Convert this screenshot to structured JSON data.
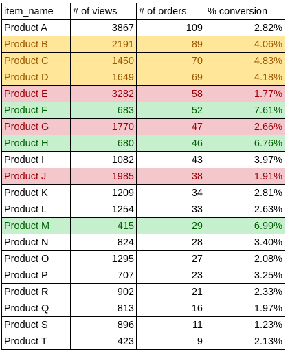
{
  "sheet": {
    "headers": [
      "item_name",
      "# of views",
      "# of orders",
      "% conversion"
    ],
    "highlight_styles": {
      "none": {
        "bg": "#ffffff",
        "fg": "#000000"
      },
      "yellow": {
        "bg": "#ffe699",
        "fg": "#9c5700"
      },
      "red": {
        "bg": "#f4c7cc",
        "fg": "#9c0006"
      },
      "green": {
        "bg": "#c6efce",
        "fg": "#006100"
      }
    },
    "rows": [
      {
        "item": "Product A",
        "views": "3867",
        "orders": "109",
        "conversion": "2.82%",
        "highlight": "none"
      },
      {
        "item": "Product B",
        "views": "2191",
        "orders": "89",
        "conversion": "4.06%",
        "highlight": "yellow"
      },
      {
        "item": "Product C",
        "views": "1450",
        "orders": "70",
        "conversion": "4.83%",
        "highlight": "yellow"
      },
      {
        "item": "Product D",
        "views": "1649",
        "orders": "69",
        "conversion": "4.18%",
        "highlight": "yellow"
      },
      {
        "item": "Product E",
        "views": "3282",
        "orders": "58",
        "conversion": "1.77%",
        "highlight": "red"
      },
      {
        "item": "Product F",
        "views": "683",
        "orders": "52",
        "conversion": "7.61%",
        "highlight": "green"
      },
      {
        "item": "Product G",
        "views": "1770",
        "orders": "47",
        "conversion": "2.66%",
        "highlight": "red"
      },
      {
        "item": "Product H",
        "views": "680",
        "orders": "46",
        "conversion": "6.76%",
        "highlight": "green"
      },
      {
        "item": "Product I",
        "views": "1082",
        "orders": "43",
        "conversion": "3.97%",
        "highlight": "none"
      },
      {
        "item": "Product J",
        "views": "1985",
        "orders": "38",
        "conversion": "1.91%",
        "highlight": "red"
      },
      {
        "item": "Product K",
        "views": "1209",
        "orders": "34",
        "conversion": "2.81%",
        "highlight": "none"
      },
      {
        "item": "Product L",
        "views": "1254",
        "orders": "33",
        "conversion": "2.63%",
        "highlight": "none"
      },
      {
        "item": "Product M",
        "views": "415",
        "orders": "29",
        "conversion": "6.99%",
        "highlight": "green"
      },
      {
        "item": "Product N",
        "views": "824",
        "orders": "28",
        "conversion": "3.40%",
        "highlight": "none"
      },
      {
        "item": "Product O",
        "views": "1295",
        "orders": "27",
        "conversion": "2.08%",
        "highlight": "none"
      },
      {
        "item": "Product P",
        "views": "707",
        "orders": "23",
        "conversion": "3.25%",
        "highlight": "none"
      },
      {
        "item": "Product R",
        "views": "902",
        "orders": "21",
        "conversion": "2.33%",
        "highlight": "none"
      },
      {
        "item": "Product Q",
        "views": "813",
        "orders": "16",
        "conversion": "1.97%",
        "highlight": "none"
      },
      {
        "item": "Product S",
        "views": "896",
        "orders": "11",
        "conversion": "1.23%",
        "highlight": "none"
      },
      {
        "item": "Product T",
        "views": "423",
        "orders": "9",
        "conversion": "2.13%",
        "highlight": "none"
      }
    ]
  }
}
